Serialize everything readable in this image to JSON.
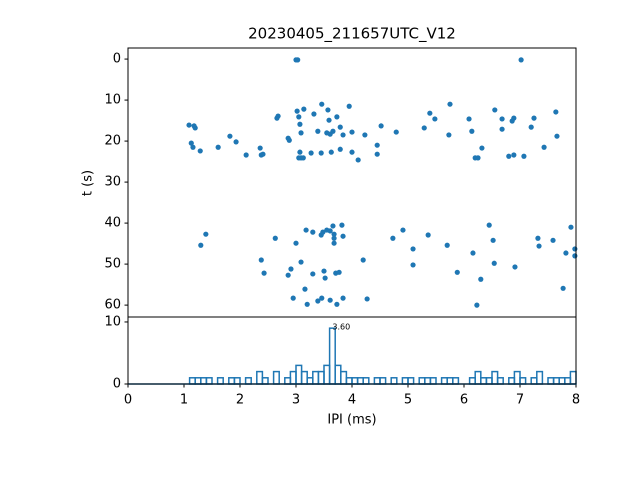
{
  "chart_data": [
    {
      "type": "scatter",
      "title": "20230405_211657UTC_V12",
      "ylabel": "t (s)",
      "color": "#1f77b4",
      "xlim": [
        0,
        8
      ],
      "ylim": [
        62.9,
        -2.7
      ],
      "yticks": [
        0,
        10,
        20,
        30,
        40,
        50,
        60
      ],
      "x": [
        3.0,
        3.03,
        7.02,
        1.09,
        1.18,
        1.2,
        1.13,
        1.16,
        1.29,
        1.61,
        1.82,
        1.93,
        2.11,
        2.36,
        2.38,
        2.41,
        2.66,
        2.68,
        2.86,
        2.88,
        3.02,
        3.05,
        3.07,
        3.14,
        3.09,
        3.07,
        3.09,
        3.05,
        3.13,
        3.27,
        3.32,
        3.39,
        3.46,
        3.45,
        3.57,
        3.59,
        3.55,
        3.61,
        3.66,
        3.63,
        3.73,
        3.79,
        3.84,
        3.79,
        3.95,
        4.0,
        4.0,
        4.11,
        4.23,
        4.45,
        4.45,
        4.52,
        4.79,
        5.29,
        5.39,
        5.48,
        5.75,
        5.73,
        6.09,
        6.14,
        6.2,
        6.25,
        6.32,
        6.55,
        6.68,
        6.68,
        6.86,
        6.89,
        6.8,
        6.89,
        7.07,
        7.2,
        7.25,
        7.43,
        7.64,
        7.66,
        1.39,
        1.3,
        2.38,
        2.43,
        2.63,
        2.86,
        2.91,
        3.0,
        3.09,
        2.95,
        3.18,
        3.16,
        3.2,
        3.3,
        3.3,
        3.39,
        3.45,
        3.46,
        3.48,
        3.5,
        3.52,
        3.55,
        3.61,
        3.61,
        3.66,
        3.68,
        3.68,
        3.68,
        3.71,
        3.73,
        3.77,
        3.82,
        3.84,
        3.84,
        4.2,
        4.27,
        4.73,
        4.91,
        5.09,
        5.09,
        5.36,
        5.7,
        5.88,
        6.16,
        6.23,
        6.3,
        6.45,
        6.52,
        6.54,
        6.91,
        7.32,
        7.34,
        7.59,
        7.77,
        7.82,
        7.91,
        7.98,
        7.98
      ],
      "y": [
        0.2,
        0.2,
        0.2,
        16.1,
        16.3,
        16.8,
        20.5,
        21.5,
        22.4,
        21.5,
        18.8,
        20.2,
        23.4,
        21.7,
        23.4,
        23.2,
        14.4,
        13.9,
        19.3,
        19.8,
        12.7,
        14.1,
        15.9,
        12.2,
        18.0,
        22.7,
        24.1,
        24.1,
        24.1,
        22.9,
        13.4,
        17.6,
        11.0,
        22.9,
        12.4,
        14.9,
        18.0,
        18.3,
        17.6,
        22.7,
        14.1,
        16.6,
        18.5,
        22.0,
        11.5,
        17.8,
        22.7,
        24.6,
        18.5,
        21.0,
        23.2,
        16.3,
        17.8,
        16.8,
        13.2,
        14.6,
        11.0,
        18.5,
        14.6,
        17.6,
        24.1,
        24.1,
        21.7,
        12.4,
        14.6,
        17.1,
        15.1,
        14.4,
        23.7,
        23.4,
        23.7,
        16.6,
        14.4,
        21.5,
        12.9,
        18.8,
        42.7,
        45.4,
        49.0,
        52.2,
        43.7,
        52.7,
        51.2,
        44.9,
        49.5,
        58.3,
        41.7,
        56.1,
        59.8,
        42.2,
        52.4,
        59.0,
        42.9,
        58.3,
        42.2,
        51.7,
        53.4,
        41.7,
        41.9,
        58.8,
        40.7,
        42.7,
        43.7,
        44.9,
        52.2,
        59.8,
        52.0,
        40.5,
        58.3,
        43.2,
        49.0,
        58.5,
        43.7,
        41.7,
        46.3,
        50.2,
        42.9,
        45.4,
        52.0,
        47.3,
        60.0,
        53.7,
        40.5,
        44.2,
        49.8,
        50.7,
        43.7,
        45.6,
        44.2,
        55.9,
        47.3,
        41.0,
        46.3,
        48.0
      ]
    },
    {
      "type": "histogram",
      "xlabel": "IPI (ms)",
      "color": "#1f77b4",
      "annotation": "3.60",
      "xlim": [
        0,
        8
      ],
      "xticks": [
        0,
        1,
        2,
        3,
        4,
        5,
        6,
        7,
        8
      ],
      "ylim": [
        0,
        10.8
      ],
      "yticks": [
        0,
        10
      ],
      "bins": [
        0,
        0.1,
        0.2,
        0.3,
        0.4,
        0.5,
        0.6,
        0.7,
        0.8,
        0.9,
        1,
        1.1,
        1.2,
        1.3,
        1.4,
        1.5,
        1.6,
        1.7,
        1.8,
        1.9,
        2,
        2.1,
        2.2,
        2.3,
        2.4,
        2.5,
        2.6,
        2.7,
        2.8,
        2.9,
        3,
        3.1,
        3.2,
        3.3,
        3.4,
        3.5,
        3.6,
        3.7,
        3.8,
        3.9,
        4,
        4.1,
        4.2,
        4.3,
        4.4,
        4.5,
        4.6,
        4.7,
        4.8,
        4.9,
        5,
        5.1,
        5.2,
        5.3,
        5.4,
        5.5,
        5.6,
        5.7,
        5.8,
        5.9,
        6,
        6.1,
        6.2,
        6.3,
        6.4,
        6.5,
        6.6,
        6.7,
        6.8,
        6.9,
        7,
        7.1,
        7.2,
        7.3,
        7.4,
        7.5,
        7.6,
        7.7,
        7.8,
        7.9,
        8
      ],
      "values": [
        0,
        0,
        0,
        0,
        0,
        0,
        0,
        0,
        0,
        0,
        0,
        1,
        1,
        1,
        1,
        0,
        1,
        0,
        1,
        1,
        0,
        1,
        0,
        2,
        1,
        0,
        2,
        0,
        1,
        2,
        3,
        2,
        1,
        2,
        2,
        3,
        9,
        3,
        2,
        1,
        1,
        1,
        1,
        0,
        1,
        1,
        0,
        1,
        0,
        1,
        1,
        0,
        1,
        1,
        1,
        0,
        1,
        1,
        1,
        0,
        0,
        1,
        2,
        1,
        1,
        2,
        1,
        0,
        1,
        2,
        1,
        0,
        1,
        2,
        0,
        1,
        1,
        1,
        1,
        2
      ]
    }
  ]
}
